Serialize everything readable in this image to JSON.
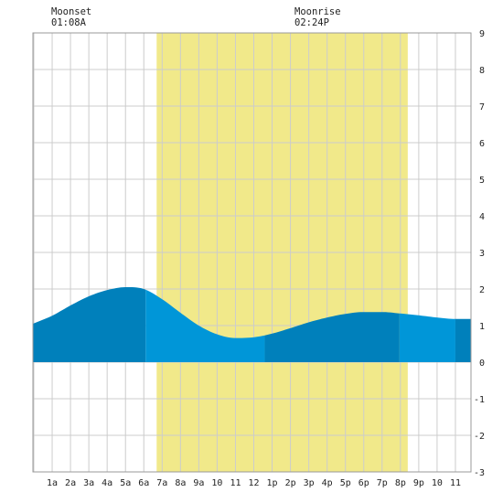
{
  "chart_data": {
    "type": "area",
    "title": "",
    "xlabel": "",
    "ylabel": "",
    "ylim": [
      -3,
      9
    ],
    "xlim": [
      -0.05,
      23.85
    ],
    "grid": true,
    "annotations": [
      {
        "kind": "moonset",
        "label": "Moonset",
        "time_text": "01:08A",
        "hour": 1.13
      },
      {
        "kind": "moonrise",
        "label": "Moonrise",
        "time_text": "02:24P",
        "hour": 14.4
      }
    ],
    "daylight": {
      "start_hour": 6.7,
      "end_hour": 20.4
    },
    "x_tick_labels": [
      "1a",
      "2a",
      "3a",
      "4a",
      "5a",
      "6a",
      "7a",
      "8a",
      "9a",
      "10",
      "11",
      "12",
      "1p",
      "2p",
      "3p",
      "4p",
      "5p",
      "6p",
      "7p",
      "8p",
      "9p",
      "10",
      "11"
    ],
    "y_ticks": [
      -3,
      -2,
      -1,
      0,
      1,
      2,
      3,
      4,
      5,
      6,
      7,
      8,
      9
    ],
    "series": [
      {
        "x": [
          -0.05,
          1,
          2,
          3,
          4,
          5,
          6,
          7,
          8,
          9,
          10,
          11,
          12,
          13,
          14,
          15,
          16,
          17,
          18,
          19,
          20,
          21,
          22,
          23,
          23.85
        ],
        "values": [
          1.05,
          1.27,
          1.55,
          1.8,
          1.97,
          2.05,
          2.0,
          1.72,
          1.35,
          1.0,
          0.76,
          0.66,
          0.68,
          0.78,
          0.93,
          1.09,
          1.22,
          1.32,
          1.37,
          1.37,
          1.33,
          1.28,
          1.22,
          1.18,
          1.18
        ]
      }
    ],
    "band_boundaries": [
      6.1,
      12.6,
      19.95,
      23.0
    ],
    "colors": {
      "daylight": "#f1e98a",
      "tide_dark": "#0080bb",
      "tide_light": "#0096d8",
      "grid": "#cccccc",
      "axis_line": "#999999"
    }
  }
}
